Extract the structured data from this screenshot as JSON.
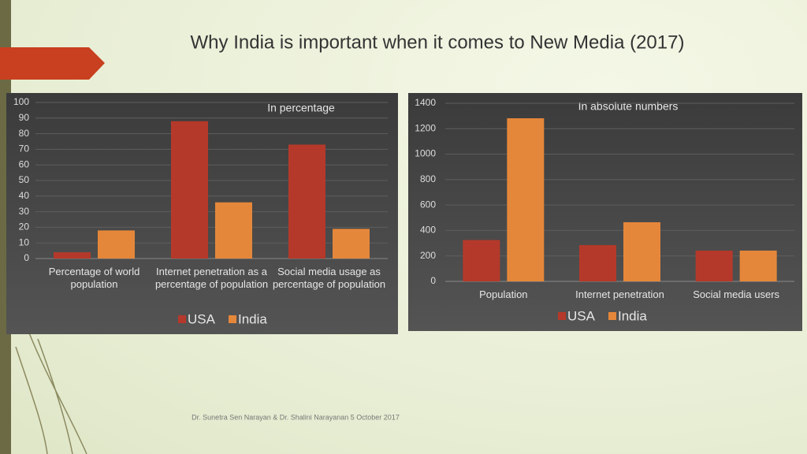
{
  "title": "Why India is important when it comes to New Media (2017)",
  "footer": "Dr. Sunetra Sen Narayan & Dr. Shalini Narayanan 5 October 2017",
  "chart_data": [
    {
      "type": "bar",
      "subtitle": "In percentage",
      "categories": [
        "Percentage of world population",
        "Internet penetration as a percentage of population",
        "Social media usage as percentage of population"
      ],
      "series": [
        {
          "name": "USA",
          "color": "#b5392a",
          "values": [
            4,
            88,
            73
          ]
        },
        {
          "name": "India",
          "color": "#e5873a",
          "values": [
            18,
            36,
            19
          ]
        }
      ],
      "ylim": [
        0,
        100
      ],
      "yticks": [
        0,
        10,
        20,
        30,
        40,
        50,
        60,
        70,
        80,
        90,
        100
      ],
      "grid": true,
      "legend": "bottom"
    },
    {
      "type": "bar",
      "subtitle": "In absolute numbers",
      "categories": [
        "Population",
        "Internet penetration",
        "Social media users"
      ],
      "series": [
        {
          "name": "USA",
          "color": "#b5392a",
          "values": [
            325,
            285,
            242
          ]
        },
        {
          "name": "India",
          "color": "#e5873a",
          "values": [
            1282,
            465,
            242
          ]
        }
      ],
      "ylim": [
        0,
        1400
      ],
      "yticks": [
        0,
        200,
        400,
        600,
        800,
        1000,
        1200,
        1400
      ],
      "grid": true,
      "legend": "bottom"
    }
  ]
}
